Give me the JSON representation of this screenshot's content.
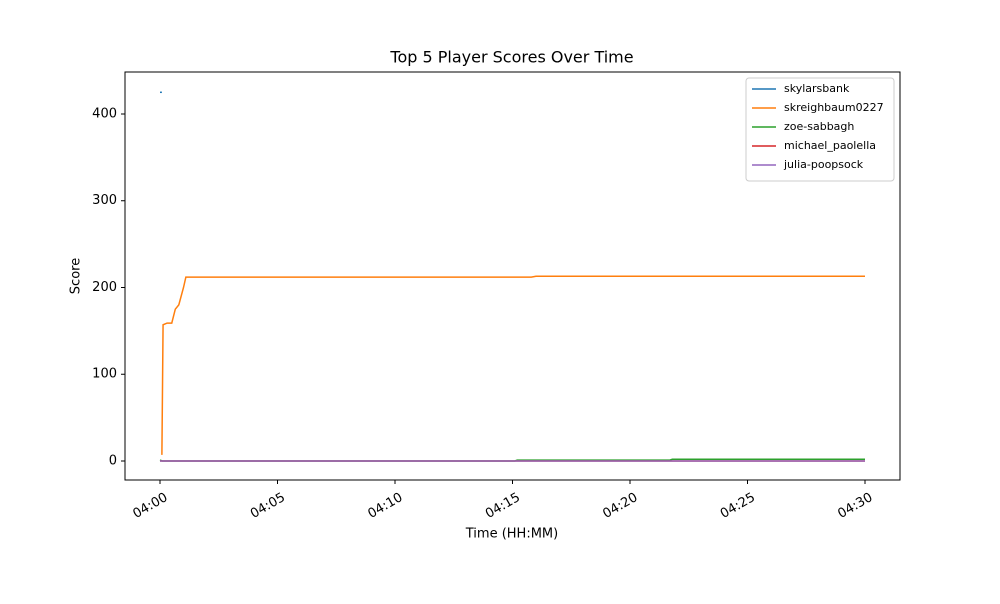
{
  "chart_data": {
    "type": "line",
    "title": "Top 5 Player Scores Over Time",
    "x_label": "Time (HH:MM)",
    "y_label": "Score",
    "xlim": [
      -1.49,
      31.49
    ],
    "ylim": [
      -21.9,
      448.4
    ],
    "xticks": [
      {
        "value": 0,
        "label": "04:00"
      },
      {
        "value": 5,
        "label": "04:05"
      },
      {
        "value": 10,
        "label": "04:10"
      },
      {
        "value": 15,
        "label": "04:15"
      },
      {
        "value": 20,
        "label": "04:20"
      },
      {
        "value": 25,
        "label": "04:25"
      },
      {
        "value": 30,
        "label": "04:30"
      }
    ],
    "yticks": [
      0,
      100,
      200,
      300,
      400
    ],
    "grid": false,
    "legend": "upper right",
    "series": [
      {
        "name": "skylarsbank",
        "color": "#1f77b4",
        "x": [
          0,
          0.08
        ],
        "values": [
          425,
          425
        ]
      },
      {
        "name": "skreighbaum0227",
        "color": "#ff7f0e",
        "x": [
          0.08,
          0.13,
          0.3,
          0.5,
          0.65,
          0.8,
          1.0,
          1.1,
          15.8,
          16.0,
          30
        ],
        "values": [
          7,
          157,
          159,
          159,
          175,
          180,
          200,
          212,
          212,
          213,
          213
        ]
      },
      {
        "name": "zoe-sabbagh",
        "color": "#2ca02c",
        "x": [
          0,
          0.1,
          15.1,
          15.2,
          21.7,
          21.8,
          30
        ],
        "values": [
          1,
          0,
          0,
          1,
          1,
          2,
          2
        ]
      },
      {
        "name": "michael_paolella",
        "color": "#d62728",
        "x": [
          0,
          30
        ],
        "values": [
          0,
          0
        ]
      },
      {
        "name": "julia-poopsock",
        "color": "#9467bd",
        "x": [
          0,
          30
        ],
        "values": [
          0,
          0
        ]
      }
    ]
  }
}
